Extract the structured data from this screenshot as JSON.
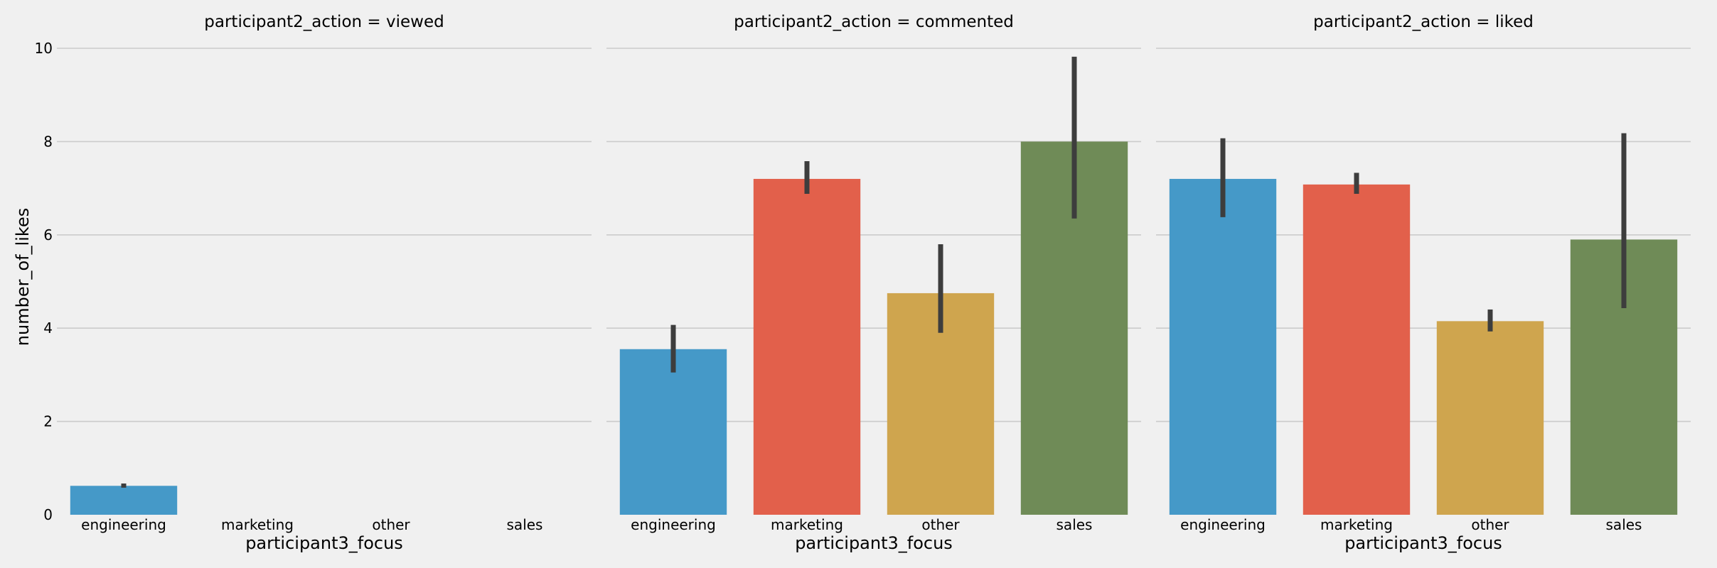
{
  "chart_data": {
    "type": "bar",
    "ylabel": "number_of_likes",
    "xlabel": "participant3_focus",
    "ylim": [
      0,
      10
    ],
    "yticks": [
      0,
      2,
      4,
      6,
      8,
      10
    ],
    "grid": true,
    "categories": [
      "engineering",
      "marketing",
      "other",
      "sales"
    ],
    "colors": [
      "#4599c8",
      "#e2604b",
      "#cfa54e",
      "#6f8b57"
    ],
    "panels": [
      {
        "title": "participant2_action = viewed",
        "values": [
          0.62,
          null,
          null,
          null
        ],
        "errors": [
          [
            0.58,
            0.67
          ],
          null,
          null,
          null
        ]
      },
      {
        "title": "participant2_action = commented",
        "values": [
          3.55,
          7.2,
          4.75,
          8.0
        ],
        "errors": [
          [
            3.05,
            4.07
          ],
          [
            6.88,
            7.58
          ],
          [
            3.9,
            5.8
          ],
          [
            6.35,
            9.82
          ]
        ]
      },
      {
        "title": "participant2_action = liked",
        "values": [
          7.2,
          7.08,
          4.15,
          5.9
        ],
        "errors": [
          [
            6.38,
            8.07
          ],
          [
            6.88,
            7.33
          ],
          [
            3.93,
            4.4
          ],
          [
            4.43,
            8.18
          ]
        ]
      }
    ]
  }
}
